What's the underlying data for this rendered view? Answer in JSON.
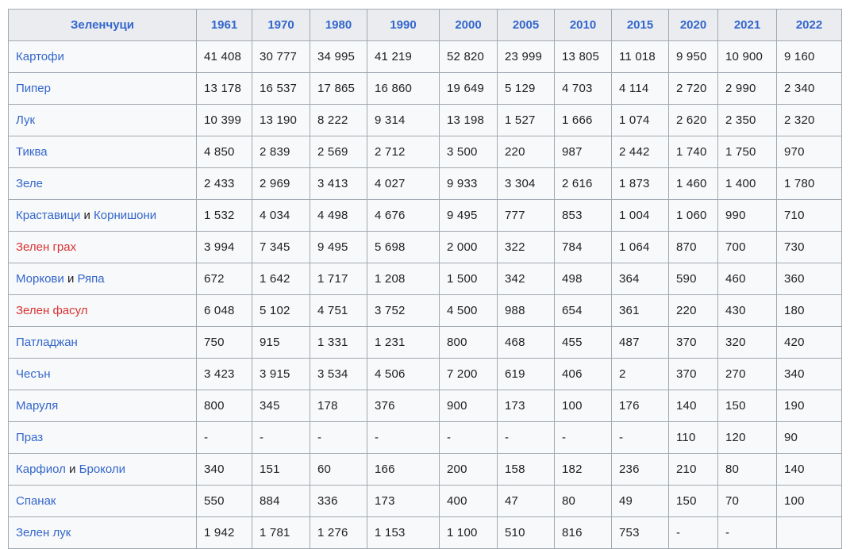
{
  "colors": {
    "link_blue": "#3366cc",
    "link_red": "#d73333",
    "header_bg": "#eaecf0",
    "cell_bg": "#f8f9fa",
    "border": "#a2a9b1",
    "text": "#202122"
  },
  "table": {
    "header": {
      "label": "Зеленчуци",
      "years": [
        "1961",
        "1970",
        "1980",
        "1990",
        "2000",
        "2005",
        "2010",
        "2015",
        "2020",
        "2021",
        "2022"
      ]
    },
    "rows": [
      {
        "name_parts": [
          {
            "text": "Картофи",
            "style": "link"
          }
        ],
        "values": [
          "41 408",
          "30 777",
          "34 995",
          "41 219",
          "52 820",
          "23 999",
          "13 805",
          "11 018",
          "9 950",
          "10 900",
          "9 160"
        ]
      },
      {
        "name_parts": [
          {
            "text": "Пипер",
            "style": "link"
          }
        ],
        "values": [
          "13 178",
          "16 537",
          "17 865",
          "16 860",
          "19 649",
          "5 129",
          "4 703",
          "4 114",
          "2 720",
          "2 990",
          "2 340"
        ]
      },
      {
        "name_parts": [
          {
            "text": "Лук",
            "style": "link"
          }
        ],
        "values": [
          "10 399",
          "13 190",
          "8 222",
          "9 314",
          "13 198",
          "1 527",
          "1 666",
          "1 074",
          "2 620",
          "2 350",
          "2 320"
        ]
      },
      {
        "name_parts": [
          {
            "text": "Тиква",
            "style": "link"
          }
        ],
        "values": [
          "4 850",
          "2 839",
          "2 569",
          "2 712",
          "3 500",
          "220",
          "987",
          "2 442",
          "1 740",
          "1 750",
          "970"
        ]
      },
      {
        "name_parts": [
          {
            "text": "Зеле",
            "style": "link"
          }
        ],
        "values": [
          "2 433",
          "2 969",
          "3 413",
          "4 027",
          "9 933",
          "3 304",
          "2 616",
          "1 873",
          "1 460",
          "1 400",
          "1 780"
        ]
      },
      {
        "name_parts": [
          {
            "text": "Краставици",
            "style": "link"
          },
          {
            "text": " и ",
            "style": "plain"
          },
          {
            "text": "Корнишони",
            "style": "link"
          }
        ],
        "values": [
          "1 532",
          "4 034",
          "4 498",
          "4 676",
          "9 495",
          "777",
          "853",
          "1 004",
          "1 060",
          "990",
          "710"
        ]
      },
      {
        "name_parts": [
          {
            "text": "Зелен грах",
            "style": "red-link"
          }
        ],
        "values": [
          "3 994",
          "7 345",
          "9 495",
          "5 698",
          "2 000",
          "322",
          "784",
          "1 064",
          "870",
          "700",
          "730"
        ]
      },
      {
        "name_parts": [
          {
            "text": "Моркови",
            "style": "link"
          },
          {
            "text": " и ",
            "style": "plain"
          },
          {
            "text": "Ряпа",
            "style": "link"
          }
        ],
        "values": [
          "672",
          "1 642",
          "1 717",
          "1 208",
          "1 500",
          "342",
          "498",
          "364",
          "590",
          "460",
          "360"
        ]
      },
      {
        "name_parts": [
          {
            "text": "Зелен фасул",
            "style": "red-link"
          }
        ],
        "values": [
          "6 048",
          "5 102",
          "4 751",
          "3 752",
          "4 500",
          "988",
          "654",
          "361",
          "220",
          "430",
          "180"
        ]
      },
      {
        "name_parts": [
          {
            "text": "Патладжан",
            "style": "link"
          }
        ],
        "values": [
          "750",
          "915",
          "1 331",
          "1 231",
          "800",
          "468",
          "455",
          "487",
          "370",
          "320",
          "420"
        ]
      },
      {
        "name_parts": [
          {
            "text": "Чесън",
            "style": "link"
          }
        ],
        "values": [
          "3 423",
          "3 915",
          "3 534",
          "4 506",
          "7 200",
          "619",
          "406",
          "2",
          "370",
          "270",
          "340"
        ]
      },
      {
        "name_parts": [
          {
            "text": "Маруля",
            "style": "link"
          }
        ],
        "values": [
          "800",
          "345",
          "178",
          "376",
          "900",
          "173",
          "100",
          "176",
          "140",
          "150",
          "190"
        ]
      },
      {
        "name_parts": [
          {
            "text": "Праз",
            "style": "link"
          }
        ],
        "values": [
          "-",
          "-",
          "-",
          "-",
          "-",
          "-",
          "-",
          "-",
          "110",
          "120",
          "90"
        ]
      },
      {
        "name_parts": [
          {
            "text": "Карфиол",
            "style": "link"
          },
          {
            "text": " и ",
            "style": "plain"
          },
          {
            "text": "Броколи",
            "style": "link"
          }
        ],
        "values": [
          "340",
          "151",
          "60",
          "166",
          "200",
          "158",
          "182",
          "236",
          "210",
          "80",
          "140"
        ]
      },
      {
        "name_parts": [
          {
            "text": "Спанак",
            "style": "link"
          }
        ],
        "values": [
          "550",
          "884",
          "336",
          "173",
          "400",
          "47",
          "80",
          "49",
          "150",
          "70",
          "100"
        ]
      },
      {
        "name_parts": [
          {
            "text": "Зелен лук",
            "style": "link"
          }
        ],
        "values": [
          "1 942",
          "1 781",
          "1 276",
          "1 153",
          "1 100",
          "510",
          "816",
          "753",
          "-",
          "-",
          ""
        ]
      }
    ]
  }
}
